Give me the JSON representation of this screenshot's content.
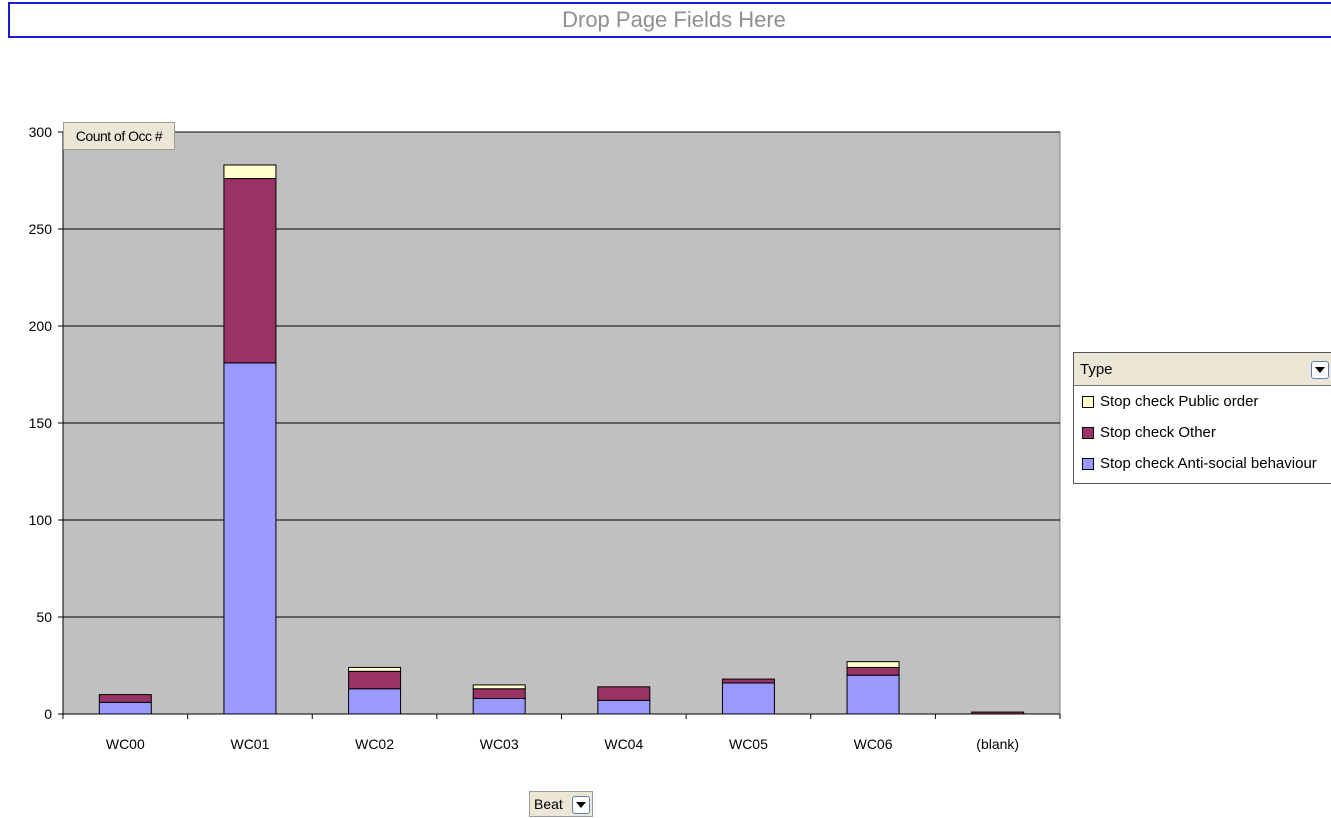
{
  "page_fields": {
    "drop_label": "Drop Page Fields Here"
  },
  "data_field": {
    "label": "Count of Occ #"
  },
  "row_field": {
    "label": "Beat"
  },
  "legend": {
    "title": "Type",
    "items": [
      {
        "label": "Stop check Public order",
        "color": "#ffffcc"
      },
      {
        "label": "Stop check Other",
        "color": "#993366"
      },
      {
        "label": "Stop check Anti-social behaviour",
        "color": "#9999ff"
      }
    ]
  },
  "chart_data": {
    "type": "bar",
    "stacked": true,
    "categories": [
      "WC00",
      "WC01",
      "WC02",
      "WC03",
      "WC04",
      "WC05",
      "WC06",
      "(blank)"
    ],
    "series": [
      {
        "name": "Stop check Anti-social behaviour",
        "color": "#9999ff",
        "values": [
          6,
          181,
          13,
          8,
          7,
          16,
          20,
          0
        ]
      },
      {
        "name": "Stop check Other",
        "color": "#993366",
        "values": [
          4,
          95,
          9,
          5,
          7,
          2,
          4,
          1
        ]
      },
      {
        "name": "Stop check Public order",
        "color": "#ffffcc",
        "values": [
          0,
          7,
          2,
          2,
          0,
          0,
          3,
          0
        ]
      }
    ],
    "ylim": [
      0,
      300
    ],
    "yticks": [
      0,
      50,
      100,
      150,
      200,
      250,
      300
    ],
    "grid": true,
    "plot_background": "#c0c0c0",
    "legend_position": "right"
  }
}
